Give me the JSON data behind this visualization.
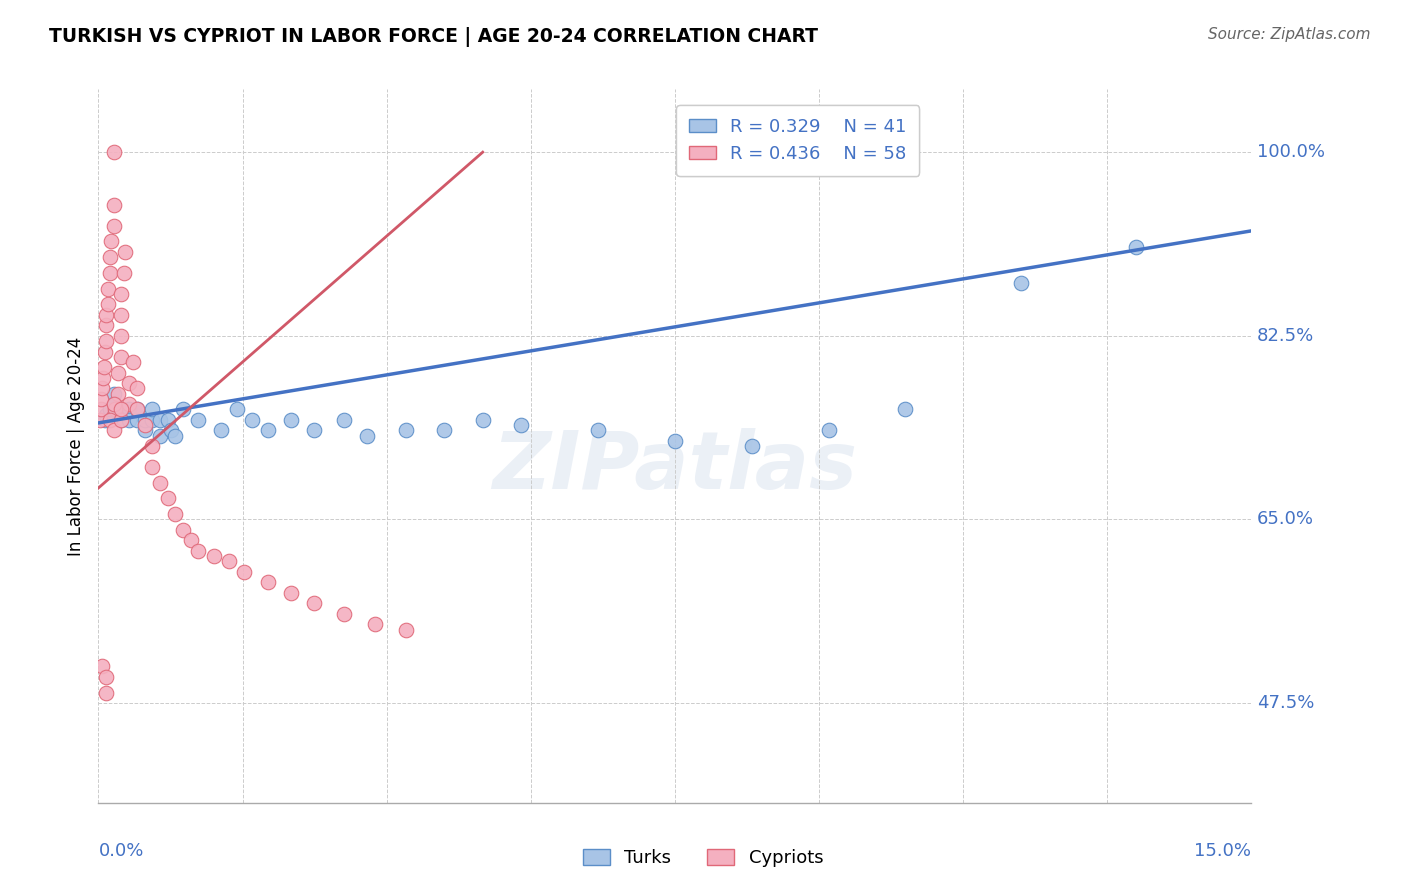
{
  "title": "TURKISH VS CYPRIOT IN LABOR FORCE | AGE 20-24 CORRELATION CHART",
  "source": "Source: ZipAtlas.com",
  "ylabel": "In Labor Force | Age 20-24",
  "yticks_vals": [
    0.475,
    0.65,
    0.825,
    1.0
  ],
  "ytick_labels": [
    "47.5%",
    "65.0%",
    "82.5%",
    "100.0%"
  ],
  "xmin": 0.0,
  "xmax": 0.15,
  "ymin": 0.38,
  "ymax": 1.06,
  "turks_R": 0.329,
  "turks_N": 41,
  "cypriots_R": 0.436,
  "cypriots_N": 58,
  "turks_color": "#a8c4e6",
  "cypriots_color": "#f4b0c0",
  "turks_edge_color": "#5b8ec8",
  "cypriots_edge_color": "#e06878",
  "turks_line_color": "#4472c4",
  "cypriots_line_color": "#d05868",
  "watermark_text": "ZIPatlas",
  "turks_x": [
    0.0008,
    0.001,
    0.0015,
    0.002,
    0.002,
    0.003,
    0.003,
    0.004,
    0.004,
    0.005,
    0.005,
    0.006,
    0.006,
    0.007,
    0.007,
    0.008,
    0.008,
    0.009,
    0.0095,
    0.01,
    0.011,
    0.013,
    0.016,
    0.018,
    0.02,
    0.022,
    0.025,
    0.028,
    0.032,
    0.035,
    0.04,
    0.045,
    0.05,
    0.055,
    0.065,
    0.075,
    0.085,
    0.095,
    0.105,
    0.12,
    0.135
  ],
  "turks_y": [
    0.745,
    0.75,
    0.755,
    0.77,
    0.76,
    0.755,
    0.745,
    0.755,
    0.745,
    0.745,
    0.755,
    0.735,
    0.745,
    0.745,
    0.755,
    0.73,
    0.745,
    0.745,
    0.735,
    0.73,
    0.755,
    0.745,
    0.735,
    0.755,
    0.745,
    0.735,
    0.745,
    0.735,
    0.745,
    0.73,
    0.735,
    0.735,
    0.745,
    0.74,
    0.735,
    0.725,
    0.72,
    0.735,
    0.755,
    0.875,
    0.91
  ],
  "cypriots_x": [
    0.0002,
    0.0003,
    0.0004,
    0.0005,
    0.0006,
    0.0007,
    0.0008,
    0.001,
    0.001,
    0.001,
    0.0012,
    0.0013,
    0.0015,
    0.0015,
    0.0017,
    0.002,
    0.002,
    0.002,
    0.0022,
    0.0025,
    0.0025,
    0.003,
    0.003,
    0.003,
    0.003,
    0.0033,
    0.0035,
    0.004,
    0.004,
    0.0045,
    0.005,
    0.005,
    0.006,
    0.007,
    0.007,
    0.008,
    0.009,
    0.01,
    0.011,
    0.012,
    0.013,
    0.015,
    0.017,
    0.019,
    0.022,
    0.025,
    0.028,
    0.032,
    0.036,
    0.04,
    0.0005,
    0.001,
    0.001,
    0.0015,
    0.002,
    0.002,
    0.003,
    0.003
  ],
  "cypriots_y": [
    0.745,
    0.755,
    0.765,
    0.775,
    0.785,
    0.795,
    0.81,
    0.82,
    0.835,
    0.845,
    0.855,
    0.87,
    0.885,
    0.9,
    0.915,
    0.93,
    0.95,
    1.0,
    0.755,
    0.77,
    0.79,
    0.805,
    0.825,
    0.845,
    0.865,
    0.885,
    0.905,
    0.76,
    0.78,
    0.8,
    0.755,
    0.775,
    0.74,
    0.72,
    0.7,
    0.685,
    0.67,
    0.655,
    0.64,
    0.63,
    0.62,
    0.615,
    0.61,
    0.6,
    0.59,
    0.58,
    0.57,
    0.56,
    0.55,
    0.545,
    0.51,
    0.485,
    0.5,
    0.745,
    0.735,
    0.76,
    0.745,
    0.755
  ],
  "turks_line_x0": 0.0,
  "turks_line_y0": 0.742,
  "turks_line_x1": 0.15,
  "turks_line_y1": 0.925,
  "cypriots_line_x0": 0.0,
  "cypriots_line_y0": 0.68,
  "cypriots_line_x1": 0.05,
  "cypriots_line_y1": 1.0
}
